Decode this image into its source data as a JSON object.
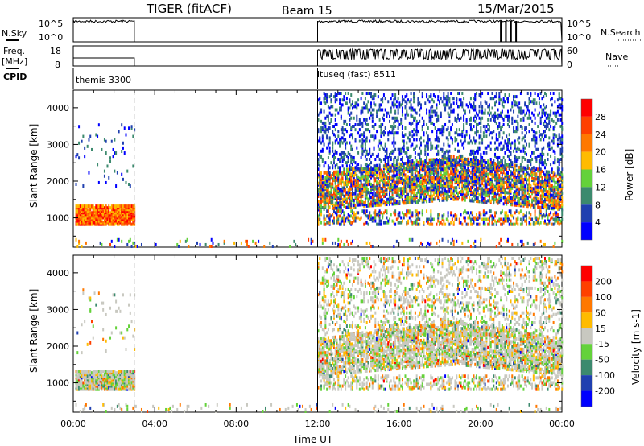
{
  "header": {
    "title": "TIGER (fitACF)",
    "beam": "Beam 15",
    "date": "15/Mar/2015"
  },
  "status_panels": {
    "nsky_label": "N.Sky",
    "nsearch_label": "N.Search",
    "nsky_ticks": [
      "10^5",
      "10^0"
    ],
    "nsearch_ticks": [
      "10^5",
      "10^0"
    ],
    "freq_label": "Freq.",
    "freq_unit": "[MHz]",
    "freq_ticks": [
      "18",
      "8"
    ],
    "nave_label": "Nave",
    "nave_ticks": [
      "60",
      "0"
    ],
    "cpid_label": "CPID",
    "cpid_entries": [
      {
        "name": "themis 3300",
        "start_hour": 0
      },
      {
        "name": "ltuseq (fast) 8511",
        "start_hour": 12
      }
    ]
  },
  "chart_data": [
    {
      "type": "heatmap",
      "title": "Power",
      "ylabel": "Slant Range [km]",
      "xlabel": "Time UT",
      "xlim": [
        0,
        24
      ],
      "ylim": [
        200,
        4480
      ],
      "xticks": [
        "00:00",
        "04:00",
        "08:00",
        "12:00",
        "16:00",
        "20:00",
        "00:00"
      ],
      "yticks": [
        "1000",
        "2000",
        "3000",
        "4000"
      ],
      "colorbar": {
        "label": "Power [dB]",
        "ticks": [
          "28",
          "24",
          "20",
          "16",
          "12",
          "8",
          "4"
        ],
        "colors": [
          "#0000ff",
          "#2040b0",
          "#3c8a6e",
          "#64d23a",
          "#ffbb00",
          "#ff7800",
          "#ff4000",
          "#ff0000"
        ]
      },
      "echo_regions": [
        {
          "hours": [
            0.1,
            3.0
          ],
          "range_km": [
            800,
            1300
          ],
          "density": 0.9,
          "level": "high"
        },
        {
          "hours": [
            0.1,
            3.0
          ],
          "range_km": [
            1800,
            3600
          ],
          "density": 0.03,
          "level": "low"
        },
        {
          "hours": [
            12.0,
            24.0
          ],
          "range_km": [
            1200,
            2200
          ],
          "density": 0.6,
          "level": "mid"
        },
        {
          "hours": [
            12.0,
            24.0
          ],
          "range_km": [
            2300,
            4400
          ],
          "density": 0.2,
          "level": "low"
        },
        {
          "hours": [
            12.0,
            24.0
          ],
          "range_km": [
            800,
            1200
          ],
          "density": 0.3,
          "level": "mid"
        },
        {
          "hours": [
            0.1,
            24.0
          ],
          "range_km": [
            200,
            400
          ],
          "density": 0.08,
          "level": "mid"
        }
      ]
    },
    {
      "type": "heatmap",
      "title": "Velocity",
      "ylabel": "Slant Range [km]",
      "xlabel": "Time UT",
      "xlim": [
        0,
        24
      ],
      "ylim": [
        200,
        4480
      ],
      "xticks": [
        "00:00",
        "04:00",
        "08:00",
        "12:00",
        "16:00",
        "20:00",
        "00:00"
      ],
      "yticks": [
        "1000",
        "2000",
        "3000",
        "4000"
      ],
      "colorbar": {
        "label": "Velocity [m s-1]",
        "ticks": [
          "200",
          "100",
          "50",
          "15",
          "-15",
          "-50",
          "-100",
          "-200"
        ],
        "colors": [
          "#0000ff",
          "#2040b0",
          "#3c8a6e",
          "#64d23a",
          "#c8c8c0",
          "#ffbb00",
          "#ff7800",
          "#ff4000",
          "#ff0000"
        ]
      }
    }
  ]
}
